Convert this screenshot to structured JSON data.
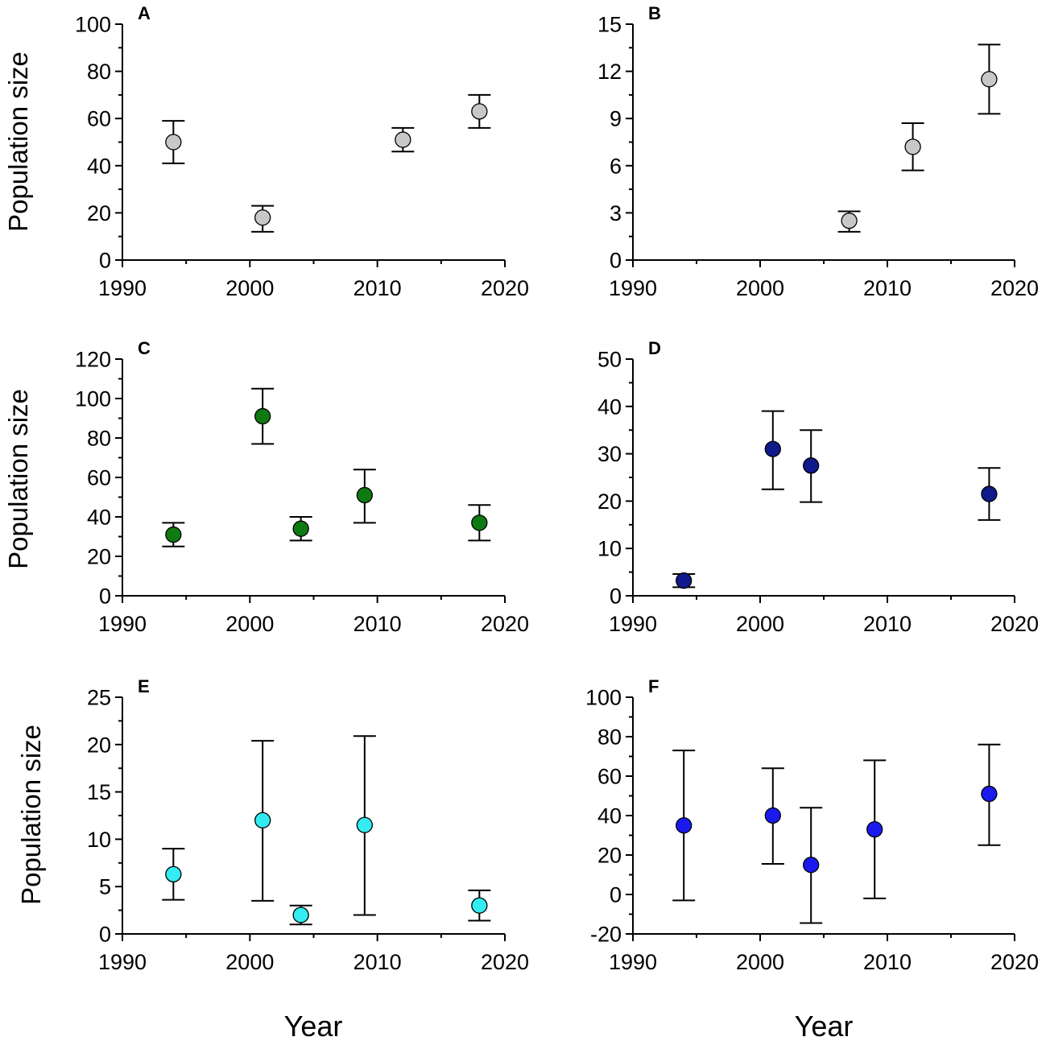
{
  "figure": {
    "ylabel_text": "Population size",
    "xlabel_text": "Year"
  },
  "chart_data": [
    {
      "panel": "A",
      "type": "scatter",
      "xlabel": "",
      "ylabel": "Population size",
      "xlim": [
        1990,
        2020
      ],
      "ylim": [
        0,
        100
      ],
      "xticks": [
        1990,
        2000,
        2010,
        2020
      ],
      "yticks": [
        0,
        20,
        40,
        60,
        80,
        100
      ],
      "color": "#c8c8c8",
      "points": [
        {
          "x": 1994,
          "y": 50,
          "lo": 41,
          "hi": 59
        },
        {
          "x": 2001,
          "y": 18,
          "lo": 12,
          "hi": 23
        },
        {
          "x": 2012,
          "y": 51,
          "lo": 46,
          "hi": 56
        },
        {
          "x": 2018,
          "y": 63,
          "lo": 56,
          "hi": 70
        }
      ]
    },
    {
      "panel": "B",
      "type": "scatter",
      "xlabel": "",
      "ylabel": "",
      "xlim": [
        1990,
        2020
      ],
      "ylim": [
        0,
        15
      ],
      "xticks": [
        1990,
        2000,
        2010,
        2020
      ],
      "yticks": [
        0,
        3,
        6,
        9,
        12,
        15
      ],
      "color": "#c8c8c8",
      "points": [
        {
          "x": 2007,
          "y": 2.5,
          "lo": 1.8,
          "hi": 3.1
        },
        {
          "x": 2012,
          "y": 7.2,
          "lo": 5.7,
          "hi": 8.7
        },
        {
          "x": 2018,
          "y": 11.5,
          "lo": 9.3,
          "hi": 13.7
        }
      ]
    },
    {
      "panel": "C",
      "type": "scatter",
      "xlabel": "",
      "ylabel": "Population size",
      "xlim": [
        1990,
        2020
      ],
      "ylim": [
        0,
        120
      ],
      "xticks": [
        1990,
        2000,
        2010,
        2020
      ],
      "yticks": [
        0,
        20,
        40,
        60,
        80,
        100,
        120
      ],
      "color": "#0f7a12",
      "points": [
        {
          "x": 1994,
          "y": 31,
          "lo": 25,
          "hi": 37
        },
        {
          "x": 2001,
          "y": 91,
          "lo": 77,
          "hi": 105
        },
        {
          "x": 2004,
          "y": 34,
          "lo": 28,
          "hi": 40
        },
        {
          "x": 2009,
          "y": 51,
          "lo": 37,
          "hi": 64
        },
        {
          "x": 2018,
          "y": 37,
          "lo": 28,
          "hi": 46
        }
      ]
    },
    {
      "panel": "D",
      "type": "scatter",
      "xlabel": "",
      "ylabel": "",
      "xlim": [
        1990,
        2020
      ],
      "ylim": [
        0,
        50
      ],
      "xticks": [
        1990,
        2000,
        2010,
        2020
      ],
      "yticks": [
        0,
        10,
        20,
        30,
        40,
        50
      ],
      "color": "#101a8a",
      "points": [
        {
          "x": 1994,
          "y": 3.2,
          "lo": 1.8,
          "hi": 4.6
        },
        {
          "x": 2001,
          "y": 31,
          "lo": 22.5,
          "hi": 39
        },
        {
          "x": 2004,
          "y": 27.5,
          "lo": 19.8,
          "hi": 35
        },
        {
          "x": 2018,
          "y": 21.5,
          "lo": 16,
          "hi": 27
        }
      ]
    },
    {
      "panel": "E",
      "type": "scatter",
      "xlabel": "Year",
      "ylabel": "Population size",
      "xlim": [
        1990,
        2020
      ],
      "ylim": [
        0,
        25
      ],
      "xticks": [
        1990,
        2000,
        2010,
        2020
      ],
      "yticks": [
        0,
        5,
        10,
        15,
        20,
        25
      ],
      "color": "#33ecf2",
      "points": [
        {
          "x": 1994,
          "y": 6.3,
          "lo": 3.6,
          "hi": 9
        },
        {
          "x": 2001,
          "y": 12,
          "lo": 3.5,
          "hi": 20.4
        },
        {
          "x": 2004,
          "y": 2,
          "lo": 1,
          "hi": 3
        },
        {
          "x": 2009,
          "y": 11.5,
          "lo": 2,
          "hi": 20.9
        },
        {
          "x": 2018,
          "y": 3,
          "lo": 1.4,
          "hi": 4.6
        }
      ]
    },
    {
      "panel": "F",
      "type": "scatter",
      "xlabel": "Year",
      "ylabel": "",
      "xlim": [
        1990,
        2020
      ],
      "ylim": [
        -20,
        100
      ],
      "xticks": [
        1990,
        2000,
        2010,
        2020
      ],
      "yticks": [
        -20,
        0,
        20,
        40,
        60,
        80,
        100
      ],
      "color": "#1a1aef",
      "points": [
        {
          "x": 1994,
          "y": 35,
          "lo": -3,
          "hi": 73
        },
        {
          "x": 2001,
          "y": 40,
          "lo": 15.5,
          "hi": 64
        },
        {
          "x": 2004,
          "y": 15,
          "lo": -14.5,
          "hi": 44
        },
        {
          "x": 2009,
          "y": 33,
          "lo": -2,
          "hi": 68
        },
        {
          "x": 2018,
          "y": 51,
          "lo": 25,
          "hi": 76
        }
      ]
    }
  ]
}
